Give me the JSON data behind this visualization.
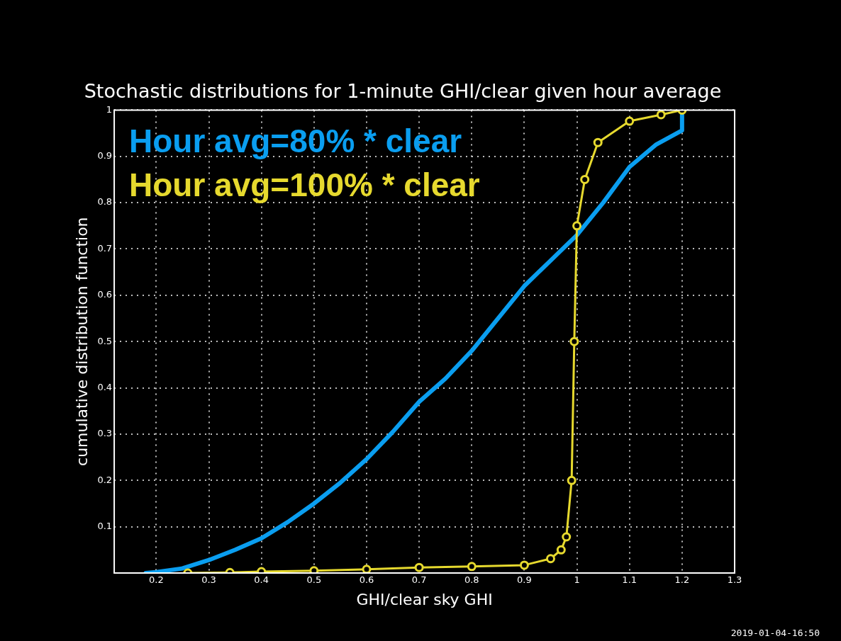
{
  "chart_data": {
    "type": "line",
    "title": "Stochastic distributions for 1-minute GHI/clear given hour average",
    "xlabel": "GHI/clear sky GHI",
    "ylabel": "cumulative distribution function",
    "series": [
      {
        "name": "Hour avg=80% * clear",
        "color": "#0a9ef0",
        "marker": "none",
        "x": [
          0.18,
          0.2,
          0.25,
          0.3,
          0.35,
          0.4,
          0.45,
          0.5,
          0.55,
          0.6,
          0.65,
          0.7,
          0.75,
          0.8,
          0.85,
          0.9,
          0.95,
          1.0,
          1.05,
          1.1,
          1.15,
          1.2,
          1.2
        ],
        "values": [
          0,
          0.002,
          0.01,
          0.028,
          0.05,
          0.075,
          0.11,
          0.15,
          0.195,
          0.246,
          0.305,
          0.37,
          0.42,
          0.48,
          0.55,
          0.62,
          0.675,
          0.73,
          0.8,
          0.877,
          0.925,
          0.956,
          1.0
        ]
      },
      {
        "name": "Hour avg=100% * clear",
        "color": "#e6d92e",
        "marker": "circle",
        "x": [
          0.26,
          0.34,
          0.4,
          0.5,
          0.6,
          0.7,
          0.8,
          0.9,
          0.95,
          0.97,
          0.98,
          0.99,
          0.995,
          1.0,
          1.015,
          1.04,
          1.1,
          1.16,
          1.2
        ],
        "values": [
          0,
          0.001,
          0.003,
          0.005,
          0.008,
          0.012,
          0.014,
          0.017,
          0.031,
          0.05,
          0.078,
          0.2,
          0.5,
          0.75,
          0.85,
          0.93,
          0.976,
          0.99,
          1.0
        ]
      }
    ],
    "xlim": [
      0.12,
      1.3
    ],
    "xticks": [
      0.2,
      0.3,
      0.4,
      0.5,
      0.6,
      0.7,
      0.8,
      0.9,
      1,
      1.1,
      1.2,
      1.3
    ],
    "ylim": [
      0,
      1
    ],
    "yticks": [
      0.1,
      0.2,
      0.3,
      0.4,
      0.5,
      0.6,
      0.7,
      0.8,
      0.9,
      1
    ],
    "grid": true,
    "legend": "top left",
    "line_style": "solid",
    "annotations": [
      "2019-01-04-16:50"
    ]
  }
}
